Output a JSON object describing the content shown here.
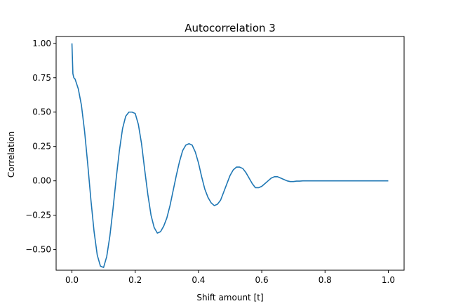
{
  "chart_data": {
    "type": "line",
    "title": "Autocorrelation 3",
    "xlabel": "Shift amount [t]",
    "ylabel": "Correlation",
    "xlim": [
      -0.05,
      1.05
    ],
    "ylim": [
      -0.65,
      1.05
    ],
    "xticks": [
      {
        "value": 0.0,
        "label": "0.0"
      },
      {
        "value": 0.2,
        "label": "0.2"
      },
      {
        "value": 0.4,
        "label": "0.4"
      },
      {
        "value": 0.6,
        "label": "0.6"
      },
      {
        "value": 0.8,
        "label": "0.8"
      },
      {
        "value": 1.0,
        "label": "1.0"
      }
    ],
    "yticks": [
      {
        "value": -0.5,
        "label": "−0.50"
      },
      {
        "value": -0.25,
        "label": "−0.25"
      },
      {
        "value": 0.0,
        "label": "0.00"
      },
      {
        "value": 0.25,
        "label": "0.25"
      },
      {
        "value": 0.5,
        "label": "0.50"
      },
      {
        "value": 0.75,
        "label": "0.75"
      },
      {
        "value": 1.0,
        "label": "1.00"
      }
    ],
    "grid": false,
    "series": [
      {
        "color": "#1f77b4",
        "x": [
          0.0,
          0.003,
          0.006,
          0.01,
          0.02,
          0.03,
          0.04,
          0.05,
          0.06,
          0.07,
          0.08,
          0.09,
          0.1,
          0.11,
          0.12,
          0.13,
          0.14,
          0.15,
          0.16,
          0.17,
          0.18,
          0.19,
          0.2,
          0.21,
          0.22,
          0.23,
          0.24,
          0.25,
          0.26,
          0.27,
          0.28,
          0.29,
          0.3,
          0.31,
          0.32,
          0.33,
          0.34,
          0.35,
          0.36,
          0.37,
          0.38,
          0.39,
          0.4,
          0.41,
          0.42,
          0.43,
          0.44,
          0.45,
          0.46,
          0.47,
          0.48,
          0.49,
          0.5,
          0.51,
          0.52,
          0.53,
          0.54,
          0.55,
          0.56,
          0.57,
          0.58,
          0.59,
          0.6,
          0.61,
          0.62,
          0.63,
          0.64,
          0.65,
          0.66,
          0.67,
          0.68,
          0.69,
          0.7,
          0.71,
          0.72,
          0.73,
          0.74,
          0.75,
          0.76,
          0.77,
          0.78,
          0.79,
          0.8,
          0.81,
          0.82,
          0.83,
          0.84,
          0.85,
          0.86,
          0.87,
          0.88,
          0.89,
          0.9,
          0.92,
          0.94,
          0.96,
          0.98,
          1.0
        ],
        "y": [
          1.0,
          0.78,
          0.75,
          0.74,
          0.67,
          0.55,
          0.36,
          0.12,
          -0.14,
          -0.37,
          -0.54,
          -0.62,
          -0.63,
          -0.55,
          -0.4,
          -0.2,
          0.02,
          0.22,
          0.38,
          0.47,
          0.5,
          0.5,
          0.49,
          0.41,
          0.27,
          0.08,
          -0.1,
          -0.25,
          -0.34,
          -0.38,
          -0.37,
          -0.33,
          -0.27,
          -0.18,
          -0.07,
          0.04,
          0.14,
          0.22,
          0.26,
          0.27,
          0.26,
          0.21,
          0.13,
          0.03,
          -0.06,
          -0.12,
          -0.16,
          -0.18,
          -0.17,
          -0.14,
          -0.08,
          -0.02,
          0.04,
          0.08,
          0.1,
          0.1,
          0.09,
          0.06,
          0.02,
          -0.02,
          -0.05,
          -0.05,
          -0.04,
          -0.02,
          0.0,
          0.02,
          0.03,
          0.03,
          0.02,
          0.01,
          0.0,
          -0.005,
          -0.005,
          -0.002,
          -0.002,
          0.0,
          0.0,
          0.0,
          0.0,
          0.0,
          0.0,
          0.0,
          0.0,
          0.0,
          0.0,
          0.0,
          0.0,
          0.0,
          0.0,
          0.0,
          0.0,
          0.0,
          0.0,
          0.0,
          0.0,
          0.0,
          0.0,
          0.0
        ]
      }
    ]
  }
}
